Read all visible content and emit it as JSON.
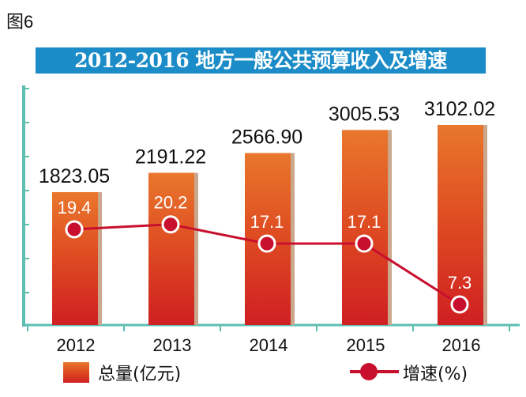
{
  "figure_label": "图6",
  "chart_data": {
    "type": "bar+line",
    "title": "2012-2016 地方一般公共预算收入及增速",
    "categories": [
      "2012",
      "2013",
      "2014",
      "2015",
      "2016"
    ],
    "series": [
      {
        "name": "总量(亿元)",
        "type": "bar",
        "values": [
          1823.05,
          2191.22,
          2566.9,
          3005.53,
          3102.02
        ],
        "labels": [
          "1823.05",
          "2191.22",
          "2566.90",
          "3005.53",
          "3102.02"
        ],
        "color": "#d83a1f"
      },
      {
        "name": "增速(%)",
        "type": "line",
        "values": [
          19.4,
          20.2,
          17.1,
          17.1,
          7.3
        ],
        "labels": [
          "19.4",
          "20.2",
          "17.1",
          "17.1",
          "7.3"
        ],
        "color": "#c8102e"
      }
    ],
    "legend": "bottom",
    "grid": false,
    "axis_color": "#5cbfb1",
    "title_bg": "#1b8cc7"
  }
}
